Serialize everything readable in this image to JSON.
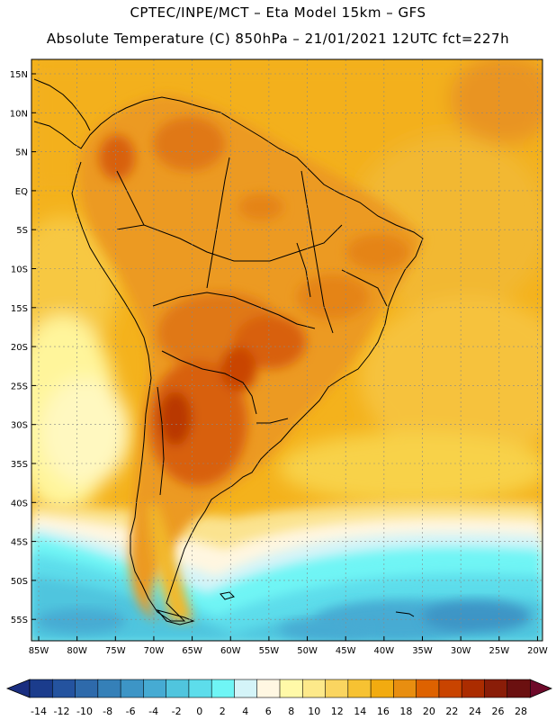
{
  "header": {
    "line1": "CPTEC/INPE/MCT –  Eta Model 15km – GFS",
    "line2": "Absolute Temperature (C) 850hPa – 21/01/2021 12UTC fct=227h"
  },
  "map": {
    "lat_labels": [
      "15N",
      "10N",
      "5N",
      "EQ",
      "5S",
      "10S",
      "15S",
      "20S",
      "25S",
      "30S",
      "35S",
      "40S",
      "45S",
      "50S",
      "55S"
    ],
    "lon_labels": [
      "85W",
      "80W",
      "75W",
      "70W",
      "65W",
      "60W",
      "55W",
      "50W",
      "45W",
      "40W",
      "35W",
      "30W",
      "25W",
      "20W"
    ]
  },
  "colorbar": {
    "ticks": [
      "-14",
      "-12",
      "-10",
      "-8",
      "-6",
      "-4",
      "-2",
      "0",
      "2",
      "4",
      "6",
      "8",
      "10",
      "12",
      "14",
      "16",
      "18",
      "20",
      "22",
      "24",
      "26",
      "28"
    ],
    "colors": [
      "#1b3c8c",
      "#24539f",
      "#2e6aab",
      "#3580b8",
      "#3d95c6",
      "#46abd3",
      "#50c5de",
      "#5dddeb",
      "#6ff5f5",
      "#d4f4f8",
      "#fff7e2",
      "#fff9a8",
      "#fde98a",
      "#fad560",
      "#f7c232",
      "#f2ab10",
      "#e88e10",
      "#de6200",
      "#c94400",
      "#ab2c00",
      "#8a1d08",
      "#6b1010"
    ],
    "under_color": "#1a2e80",
    "over_color": "#6e0a2a"
  }
}
